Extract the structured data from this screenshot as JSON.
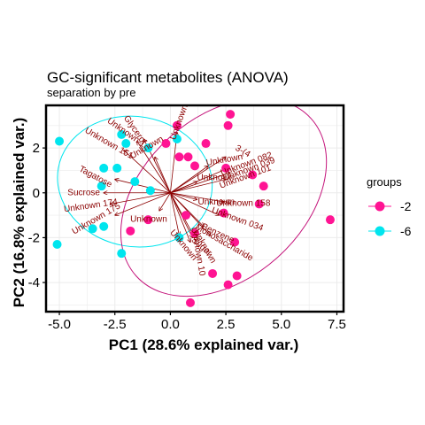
{
  "chart_data": {
    "type": "scatter",
    "title": "GC-significant metabolites (ANOVA)",
    "subtitle": "separation by pre",
    "xlabel": "PC1 (28.6% explained var.)",
    "ylabel": "PC2 (16.8% explained var.)",
    "xlim": [
      -5.6,
      7.8
    ],
    "ylim": [
      -5.3,
      3.9
    ],
    "xticks": [
      "-5.0",
      "-2.5",
      "0.0",
      "2.5",
      "5.0",
      "7.5"
    ],
    "yticks": [
      "2",
      "0",
      "-2",
      "-4"
    ],
    "grid": true,
    "legend": {
      "title": "groups",
      "position": "right"
    },
    "origin": [
      0.0,
      0.0
    ],
    "series": [
      {
        "name": "-2",
        "color": "#ff1493",
        "points": [
          [
            0.3,
            3.0
          ],
          [
            2.7,
            3.5
          ],
          [
            2.6,
            3.0
          ],
          [
            -0.2,
            2.2
          ],
          [
            1.6,
            2.2
          ],
          [
            1.1,
            1.2
          ],
          [
            0.4,
            1.6
          ],
          [
            0.8,
            1.6
          ],
          [
            2.5,
            1.1
          ],
          [
            3.7,
            0.8
          ],
          [
            4.2,
            0.3
          ],
          [
            2.4,
            -0.9
          ],
          [
            4.0,
            -0.5
          ],
          [
            0.7,
            -1.0
          ],
          [
            -1.0,
            -1.2
          ],
          [
            -1.8,
            -1.7
          ],
          [
            1.1,
            -1.8
          ],
          [
            2.9,
            -2.2
          ],
          [
            7.2,
            -1.2
          ],
          [
            1.9,
            -3.6
          ],
          [
            2.6,
            -4.1
          ],
          [
            3.0,
            -3.7
          ],
          [
            0.9,
            -4.9
          ]
        ]
      },
      {
        "name": "-6",
        "color": "#00e5ee",
        "points": [
          [
            -5.0,
            2.3
          ],
          [
            -2.0,
            2.2
          ],
          [
            -1.0,
            2.0
          ],
          [
            -2.2,
            2.6
          ],
          [
            0.3,
            2.4
          ],
          [
            -3.0,
            1.1
          ],
          [
            -2.4,
            1.1
          ],
          [
            -1.6,
            0.5
          ],
          [
            -0.9,
            0.1
          ],
          [
            -3.1,
            0.3
          ],
          [
            -3.5,
            -1.6
          ],
          [
            -3.0,
            -1.5
          ],
          [
            -2.2,
            -2.7
          ],
          [
            0.4,
            -2.0
          ],
          [
            -5.1,
            -2.3
          ]
        ]
      }
    ],
    "ellipses": [
      {
        "group": "-6",
        "color": "#00e5ee",
        "cx": -1.6,
        "cy": 0.5,
        "rx": 3.5,
        "ry": 2.9,
        "angle": 10
      },
      {
        "group": "-2",
        "color": "#c4147b",
        "cx": 2.4,
        "cy": -0.2,
        "rx": 5.3,
        "ry": 3.6,
        "angle": -42
      }
    ],
    "loadings": [
      {
        "label": "Unknown 151",
        "end": [
          -2.1,
          1.9
        ],
        "angle": 30
      },
      {
        "label": "Tagatose",
        "end": [
          -2.5,
          0.6
        ],
        "angle": 28
      },
      {
        "label": "Sucrose",
        "end": [
          -3.0,
          0.0
        ],
        "angle": 0
      },
      {
        "label": "Unknown 174",
        "end": [
          -2.7,
          -0.5
        ],
        "angle": -8
      },
      {
        "label": "Unknown 175",
        "end": [
          -2.5,
          -1.0
        ],
        "angle": -30
      },
      {
        "label": "Unknown 1",
        "end": [
          -1.5,
          2.3
        ],
        "angle": 35
      },
      {
        "label": "Glycerol",
        "end": [
          -1.2,
          2.4
        ],
        "angle": 55
      },
      {
        "label": "Unknown",
        "end": [
          0.3,
          2.7
        ],
        "angle": -70
      },
      {
        "label": "3-(4",
        "end": [
          2.5,
          1.6
        ],
        "angle": 30
      },
      {
        "label": "Unknown 082",
        "end": [
          2.6,
          1.1
        ],
        "angle": -20
      },
      {
        "label": "Unknown 039",
        "end": [
          2.7,
          0.9
        ],
        "angle": -20
      },
      {
        "label": "Unknown 101",
        "end": [
          2.5,
          0.6
        ],
        "angle": -20
      },
      {
        "label": "Unknown 158",
        "end": [
          2.4,
          -0.4
        ],
        "angle": 0
      },
      {
        "label": "Unknown 034",
        "end": [
          2.2,
          -1.0
        ],
        "angle": 20
      },
      {
        "label": "Benzene",
        "end": [
          1.5,
          -1.5
        ],
        "angle": 25
      },
      {
        "label": "Sugar",
        "end": [
          1.0,
          -2.0
        ],
        "angle": 40
      },
      {
        "label": "Monosaccharide",
        "end": [
          1.8,
          -1.9
        ],
        "angle": 30
      },
      {
        "label": "Unknown 10",
        "end": [
          0.9,
          -2.2
        ],
        "angle": 80
      },
      {
        "label": "Unknown",
        "end": [
          1.1,
          -2.0
        ],
        "angle": 60
      },
      {
        "label": "Unknown",
        "end": [
          0.4,
          -1.9
        ],
        "angle": 50
      },
      {
        "label": "Unknown",
        "end": [
          -0.7,
          1.6
        ],
        "angle": -30
      },
      {
        "label": "Unknown",
        "end": [
          1.7,
          1.2
        ],
        "angle": -10
      },
      {
        "label": "Unknown",
        "end": [
          1.2,
          0.5
        ],
        "angle": 0
      },
      {
        "label": "Unknown",
        "end": [
          -0.5,
          -0.8
        ],
        "angle": 0
      },
      {
        "label": "Unknown",
        "end": [
          1.2,
          -0.3
        ],
        "angle": 0
      }
    ]
  }
}
